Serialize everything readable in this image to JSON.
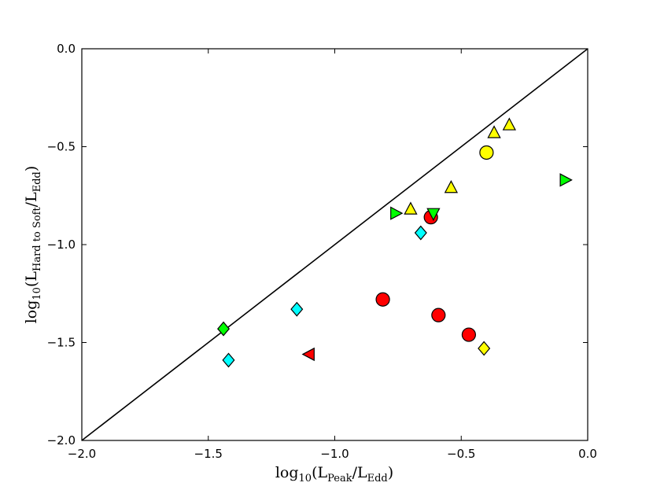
{
  "chart_data": {
    "type": "scatter",
    "xlim": [
      -2.0,
      0.0
    ],
    "ylim": [
      -2.0,
      0.0
    ],
    "grid": false,
    "x_ticks": [
      "−2.0",
      "−1.5",
      "−1.0",
      "−0.5",
      "0.0"
    ],
    "x_tick_values": [
      -2.0,
      -1.5,
      -1.0,
      -0.5,
      0.0
    ],
    "y_ticks": [
      "−2.0",
      "−1.5",
      "−1.0",
      "−0.5",
      "0.0"
    ],
    "y_tick_values": [
      -2.0,
      -1.5,
      -1.0,
      -0.5,
      0.0
    ],
    "xlabel": {
      "prefix": "log",
      "prefix_sub": "10",
      "open": "(L",
      "num_sub": "Peak",
      "mid": "/L",
      "den_sub": "Edd",
      "close": ")"
    },
    "ylabel": {
      "prefix": "log",
      "prefix_sub": "10",
      "open": "(L",
      "num_sub": "Hard to Soft",
      "mid": "/L",
      "den_sub": "Edd",
      "close": ")"
    },
    "reference_line": {
      "x": [
        -2.0,
        0.0
      ],
      "y": [
        -2.0,
        0.0
      ],
      "color": "#000000"
    },
    "series": [
      {
        "marker": "circle",
        "color": "#ff0000",
        "points": [
          [
            -0.62,
            -0.86
          ],
          [
            -0.81,
            -1.28
          ],
          [
            -0.59,
            -1.36
          ],
          [
            -0.47,
            -1.46
          ]
        ]
      },
      {
        "marker": "circle",
        "color": "#ffff00",
        "points": [
          [
            -0.4,
            -0.53
          ]
        ]
      },
      {
        "marker": "triangle-up",
        "color": "#ffff00",
        "points": [
          [
            -0.31,
            -0.39
          ],
          [
            -0.37,
            -0.43
          ],
          [
            -0.54,
            -0.71
          ],
          [
            -0.7,
            -0.82
          ]
        ]
      },
      {
        "marker": "triangle-right",
        "color": "#00ff00",
        "points": [
          [
            -0.09,
            -0.67
          ],
          [
            -0.76,
            -0.84
          ]
        ]
      },
      {
        "marker": "triangle-down",
        "color": "#00ff00",
        "points": [
          [
            -0.61,
            -0.84
          ]
        ]
      },
      {
        "marker": "triangle-left",
        "color": "#ff0000",
        "points": [
          [
            -1.1,
            -1.56
          ]
        ]
      },
      {
        "marker": "diamond",
        "color": "#00ffff",
        "points": [
          [
            -0.66,
            -0.94
          ],
          [
            -1.15,
            -1.33
          ],
          [
            -1.42,
            -1.59
          ]
        ]
      },
      {
        "marker": "diamond",
        "color": "#00ff00",
        "points": [
          [
            -1.44,
            -1.43
          ]
        ]
      },
      {
        "marker": "diamond",
        "color": "#ffff00",
        "points": [
          [
            -0.41,
            -1.53
          ]
        ]
      }
    ]
  }
}
